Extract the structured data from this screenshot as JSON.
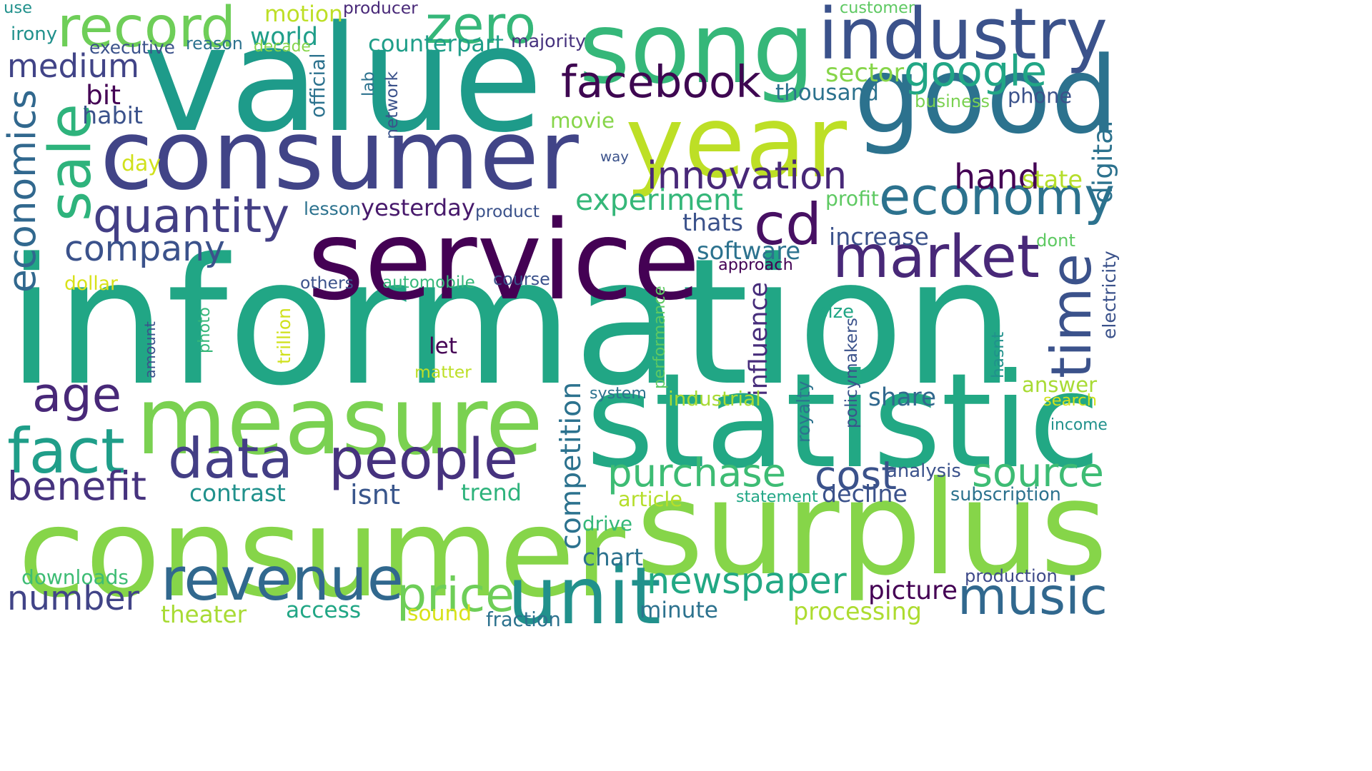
{
  "words": [
    {
      "text": "information",
      "color": "#21a685"
    },
    {
      "text": "consumer",
      "color": "#86d549"
    },
    {
      "text": "value",
      "color": "#1e9b8a"
    },
    {
      "text": "consumer",
      "color": "#414487"
    },
    {
      "text": "surplus",
      "color": "#86d549"
    },
    {
      "text": "song",
      "color": "#35b779"
    },
    {
      "text": "service",
      "color": "#440154"
    },
    {
      "text": "good",
      "color": "#2c728e"
    },
    {
      "text": "statistic",
      "color": "#22a884"
    },
    {
      "text": "measure",
      "color": "#7ad151"
    },
    {
      "text": "year",
      "color": "#bddf26"
    },
    {
      "text": "industry",
      "color": "#3b528b"
    },
    {
      "text": "economy",
      "color": "#2c728e"
    },
    {
      "text": "market",
      "color": "#482878"
    },
    {
      "text": "unit",
      "color": "#21918c"
    },
    {
      "text": "revenue",
      "color": "#31688e"
    },
    {
      "text": "music",
      "color": "#31688e"
    },
    {
      "text": "data",
      "color": "#433e85"
    },
    {
      "text": "people",
      "color": "#46327e"
    },
    {
      "text": "newspaper",
      "color": "#22a884"
    },
    {
      "text": "price",
      "color": "#6ece58"
    },
    {
      "text": "facebook",
      "color": "#3e0751"
    },
    {
      "text": "cd",
      "color": "#471063"
    },
    {
      "text": "time",
      "color": "#3b528b"
    },
    {
      "text": "record",
      "color": "#6ece58"
    },
    {
      "text": "zero",
      "color": "#35b779"
    },
    {
      "text": "google",
      "color": "#21a685"
    },
    {
      "text": "sale",
      "color": "#2eb37c"
    },
    {
      "text": "quantity",
      "color": "#433e85"
    },
    {
      "text": "company",
      "color": "#3b528b"
    },
    {
      "text": "medium",
      "color": "#414487"
    },
    {
      "text": "economics",
      "color": "#31688e"
    },
    {
      "text": "innovation",
      "color": "#482878"
    },
    {
      "text": "fact",
      "color": "#1f9e89"
    },
    {
      "text": "age",
      "color": "#482878"
    },
    {
      "text": "source",
      "color": "#3dbc74"
    },
    {
      "text": "purchase",
      "color": "#3dbc74"
    },
    {
      "text": "number",
      "color": "#414487"
    },
    {
      "text": "benefit",
      "color": "#46337e"
    },
    {
      "text": "experiment",
      "color": "#35b779"
    },
    {
      "text": "competition",
      "color": "#2c728e"
    },
    {
      "text": "cost",
      "color": "#3b528b"
    },
    {
      "text": "influence",
      "color": "#472d7b"
    },
    {
      "text": "hand",
      "color": "#440154"
    },
    {
      "text": "thousand",
      "color": "#2c728e"
    },
    {
      "text": "picture",
      "color": "#440154"
    },
    {
      "text": "processing",
      "color": "#addc30"
    },
    {
      "text": "yesterday",
      "color": "#481a6c"
    },
    {
      "text": "software",
      "color": "#2c728e"
    },
    {
      "text": "decline",
      "color": "#3b528b"
    },
    {
      "text": "increase",
      "color": "#3b528b"
    },
    {
      "text": "thats",
      "color": "#3b528b"
    },
    {
      "text": "digital",
      "color": "#2c728e"
    },
    {
      "text": "contrast",
      "color": "#21918c"
    },
    {
      "text": "share",
      "color": "#31688e"
    },
    {
      "text": "trend",
      "color": "#2eb37c"
    },
    {
      "text": "theater",
      "color": "#a8db34"
    },
    {
      "text": "access",
      "color": "#21a685"
    },
    {
      "text": "minute",
      "color": "#2c728e"
    },
    {
      "text": "isnt",
      "color": "#39568c"
    },
    {
      "text": "downloads",
      "color": "#3dbc74"
    },
    {
      "text": "sound",
      "color": "#d8e219"
    },
    {
      "text": "phone",
      "color": "#3b528b"
    },
    {
      "text": "chart",
      "color": "#2c728e"
    },
    {
      "text": "answer",
      "color": "#a8db34"
    },
    {
      "text": "habit",
      "color": "#3b528b"
    },
    {
      "text": "world",
      "color": "#1f9e89"
    },
    {
      "text": "motion",
      "color": "#bddf26"
    },
    {
      "text": "bit",
      "color": "#440154"
    },
    {
      "text": "movie",
      "color": "#86d549"
    },
    {
      "text": "counterpart",
      "color": "#1f9e89"
    },
    {
      "text": "day",
      "color": "#d0e11c"
    },
    {
      "text": "sector",
      "color": "#86d549"
    },
    {
      "text": "state",
      "color": "#b5de2b"
    },
    {
      "text": "fraction",
      "color": "#2c728e"
    },
    {
      "text": "production",
      "color": "#3e4a89"
    },
    {
      "text": "subscription",
      "color": "#2c728e"
    },
    {
      "text": "irony",
      "color": "#21918c"
    },
    {
      "text": "use",
      "color": "#21918c"
    },
    {
      "text": "executive",
      "color": "#3b528b"
    },
    {
      "text": "reason",
      "color": "#2c728e"
    },
    {
      "text": "decade",
      "color": "#86d549"
    },
    {
      "text": "producer",
      "color": "#482878"
    },
    {
      "text": "majority",
      "color": "#46327e"
    },
    {
      "text": "customer",
      "color": "#5ec962"
    },
    {
      "text": "business",
      "color": "#7ad151"
    },
    {
      "text": "official",
      "color": "#2c728e"
    },
    {
      "text": "lab",
      "color": "#2c728e"
    },
    {
      "text": "network",
      "color": "#3b528b"
    },
    {
      "text": "way",
      "color": "#3b528b"
    },
    {
      "text": "lesson",
      "color": "#2c728e"
    },
    {
      "text": "product",
      "color": "#3b528b"
    },
    {
      "text": "profit",
      "color": "#5ec962"
    },
    {
      "text": "dont",
      "color": "#5ec962"
    },
    {
      "text": "approach",
      "color": "#440154"
    },
    {
      "text": "electricity",
      "color": "#3b528b"
    },
    {
      "text": "dollar",
      "color": "#d8e219"
    },
    {
      "text": "others",
      "color": "#3b528b"
    },
    {
      "text": "automobile",
      "color": "#35b779"
    },
    {
      "text": "course",
      "color": "#3b528b"
    },
    {
      "text": "size",
      "color": "#21a685"
    },
    {
      "text": "photo",
      "color": "#35b779"
    },
    {
      "text": "amount",
      "color": "#3b528b"
    },
    {
      "text": "trillion",
      "color": "#d0e11c"
    },
    {
      "text": "let",
      "color": "#440154"
    },
    {
      "text": "matter",
      "color": "#bddf26"
    },
    {
      "text": "performance",
      "color": "#5ec962"
    },
    {
      "text": "policymakers",
      "color": "#3b528b"
    },
    {
      "text": "royalty",
      "color": "#2c728e"
    },
    {
      "text": "hasnt",
      "color": "#21918c"
    },
    {
      "text": "system",
      "color": "#2c728e"
    },
    {
      "text": "industrial",
      "color": "#a8db34"
    },
    {
      "text": "search",
      "color": "#d0e11c"
    },
    {
      "text": "income",
      "color": "#21918c"
    },
    {
      "text": "analysis",
      "color": "#3b528b"
    },
    {
      "text": "article",
      "color": "#b5de2b"
    },
    {
      "text": "statement",
      "color": "#21a685"
    },
    {
      "text": "drive",
      "color": "#35b779"
    }
  ]
}
